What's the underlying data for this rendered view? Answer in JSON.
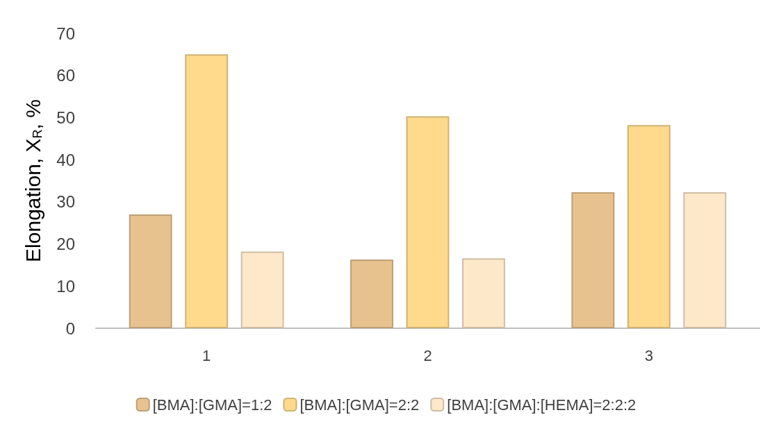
{
  "chart_data": {
    "type": "bar",
    "ylabel": "Elongation, X$_{R}$, %",
    "categories": [
      "1",
      "2",
      "3"
    ],
    "series": [
      {
        "name": "[BMA]:[GMA]=1:2",
        "color": "#e8c28e",
        "values": [
          27,
          16.3,
          32.3
        ]
      },
      {
        "name": "[BMA]:[GMA]=2:2",
        "color": "#ffd98c",
        "values": [
          65,
          50.3,
          48.2
        ]
      },
      {
        "name": "[BMA]:[GMA]:[HEMA]=2:2:2",
        "color": "#fde8c9",
        "values": [
          18.2,
          16.6,
          32.3
        ]
      }
    ],
    "ylim": [
      0,
      70
    ],
    "yticks": [
      0,
      10,
      20,
      30,
      40,
      50,
      60,
      70
    ],
    "grid": false,
    "legend": "bottom"
  }
}
